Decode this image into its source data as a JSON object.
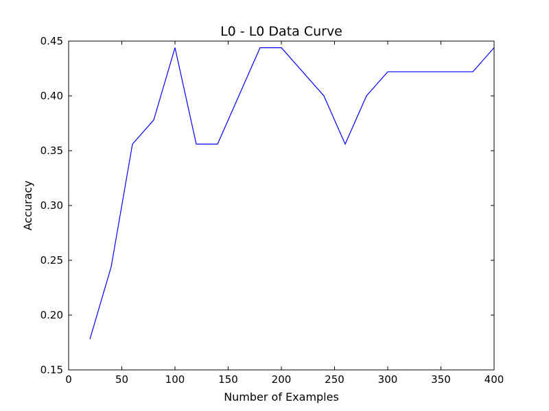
{
  "chart_data": {
    "type": "line",
    "title": "L0 - L0 Data Curve",
    "xlabel": "Number of Examples",
    "ylabel": "Accuracy",
    "xlim": [
      0,
      400
    ],
    "ylim": [
      0.15,
      0.45
    ],
    "xticks": [
      0,
      50,
      100,
      150,
      200,
      250,
      300,
      350,
      400
    ],
    "yticks": [
      0.15,
      0.2,
      0.25,
      0.3,
      0.35,
      0.4,
      0.45
    ],
    "xtick_labels": [
      "0",
      "50",
      "100",
      "150",
      "200",
      "250",
      "300",
      "350",
      "400"
    ],
    "ytick_labels": [
      "0.15",
      "0.20",
      "0.25",
      "0.30",
      "0.35",
      "0.40",
      "0.45"
    ],
    "grid": false,
    "series": [
      {
        "color": "#0000ff",
        "x": [
          20,
          40,
          60,
          80,
          100,
          120,
          140,
          160,
          180,
          200,
          220,
          240,
          260,
          280,
          300,
          320,
          340,
          360,
          380,
          400
        ],
        "y": [
          0.178,
          0.244,
          0.356,
          0.378,
          0.444,
          0.356,
          0.356,
          0.4,
          0.444,
          0.444,
          0.422,
          0.4,
          0.356,
          0.4,
          0.422,
          0.422,
          0.422,
          0.422,
          0.422,
          0.444
        ]
      }
    ]
  }
}
